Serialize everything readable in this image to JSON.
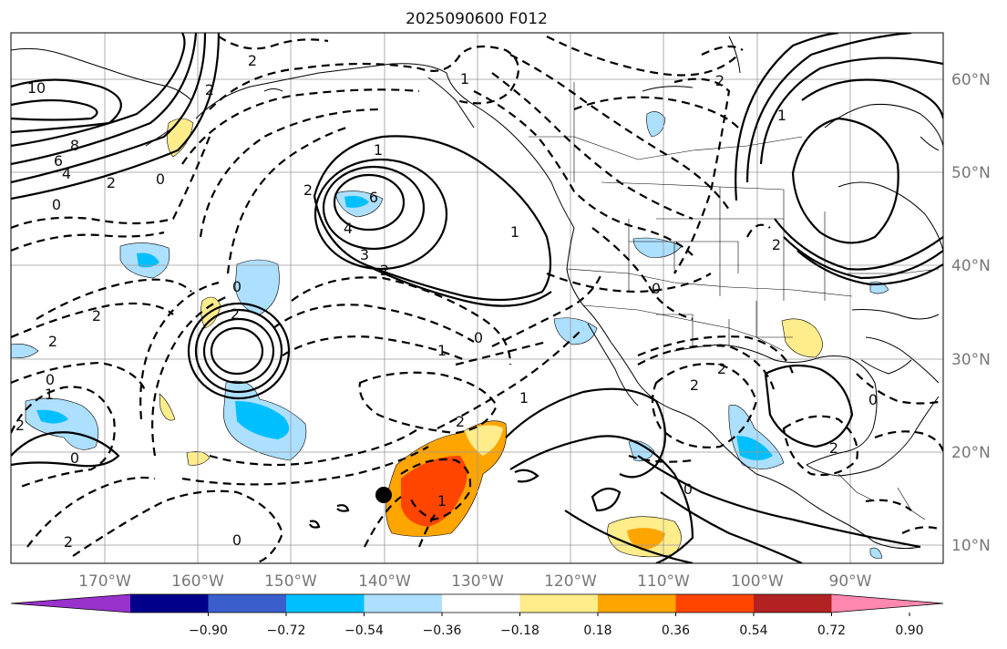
{
  "title": "2025090600 F012",
  "map": {
    "lon_labels": [
      "170°W",
      "160°W",
      "150°W",
      "140°W",
      "130°W",
      "120°W",
      "110°W",
      "100°W",
      "90°W"
    ],
    "lat_labels": [
      "60°N",
      "50°N",
      "40°N",
      "30°N",
      "20°N",
      "10°N"
    ]
  },
  "colorbar": {
    "colors": [
      "#9932CC",
      "#00008B",
      "#3A5FCD",
      "#00BFFF",
      "#ADDFFF",
      "#FFFFFF",
      "#FFEC8B",
      "#FFA500",
      "#FF4500",
      "#B22222",
      "#FF88B0"
    ],
    "tick_labels": [
      "−0.90",
      "−0.72",
      "−0.54",
      "−0.36",
      "−0.18",
      "0.18",
      "0.36",
      "0.54",
      "0.72",
      "0.90"
    ]
  },
  "contour_labels": [
    "10",
    "8",
    "6",
    "4",
    "2",
    "0",
    "2",
    "2",
    "1",
    "1",
    "2",
    "0",
    "1",
    "2",
    "6",
    "4",
    "3",
    "2",
    "1",
    "0",
    "2",
    "0",
    "2",
    "0",
    "1",
    "2",
    "2",
    "2",
    "1",
    "1",
    "0",
    "1",
    "0",
    "2",
    "2",
    "2",
    "0",
    "0",
    "2",
    "0",
    "2"
  ],
  "marker": "storm-center"
}
